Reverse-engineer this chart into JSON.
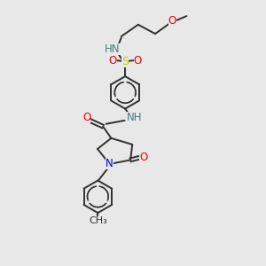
{
  "bg_color": "#e8e8e8",
  "line_color": "#303030",
  "atom_N": "#0000ee",
  "atom_O": "#ee0000",
  "atom_S": "#cccc00",
  "atom_NH": "#408080",
  "line_width": 1.4,
  "font_size": 8.5,
  "fig_w": 3.0,
  "fig_h": 3.0,
  "dpi": 100,
  "xlim": [
    0,
    10
  ],
  "ylim": [
    0,
    10
  ]
}
